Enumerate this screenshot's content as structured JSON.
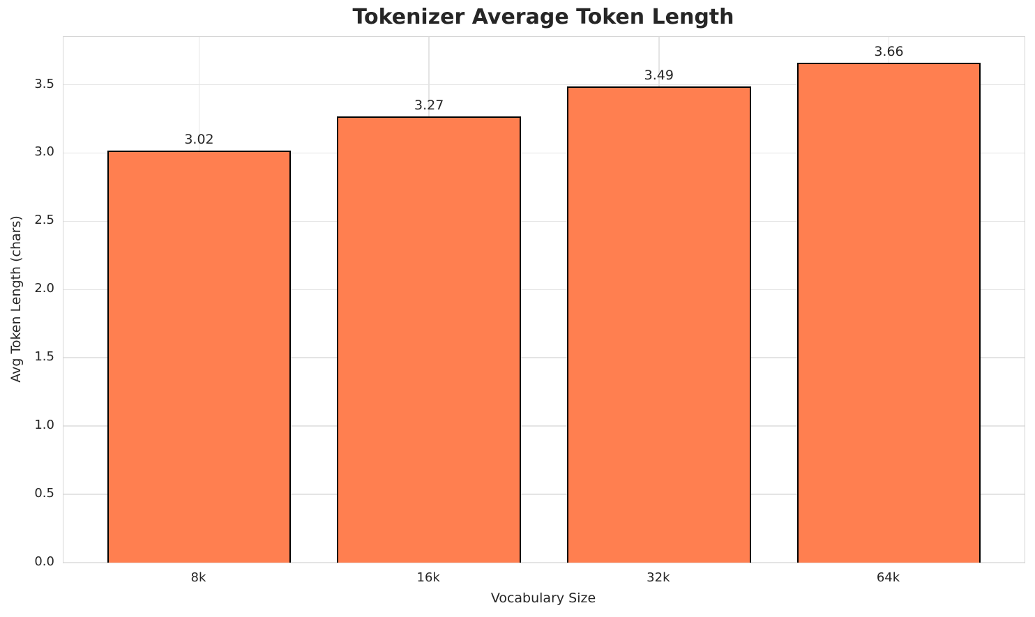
{
  "chart_data": {
    "type": "bar",
    "title": "Tokenizer Average Token Length",
    "xlabel": "Vocabulary Size",
    "ylabel": "Avg Token Length (chars)",
    "categories": [
      "8k",
      "16k",
      "32k",
      "64k"
    ],
    "values": [
      3.02,
      3.27,
      3.49,
      3.66
    ],
    "value_labels": [
      "3.02",
      "3.27",
      "3.49",
      "3.66"
    ],
    "yticks": [
      0.0,
      0.5,
      1.0,
      1.5,
      2.0,
      2.5,
      3.0,
      3.5
    ],
    "ytick_labels": [
      "0.0",
      "0.5",
      "1.0",
      "1.5",
      "2.0",
      "2.5",
      "3.0",
      "3.5"
    ],
    "ylim": [
      0,
      3.85
    ],
    "grid": true,
    "legend": false,
    "bar_color": "#FF7F50",
    "bar_edge_color": "#000000",
    "text_color": "#262626"
  }
}
